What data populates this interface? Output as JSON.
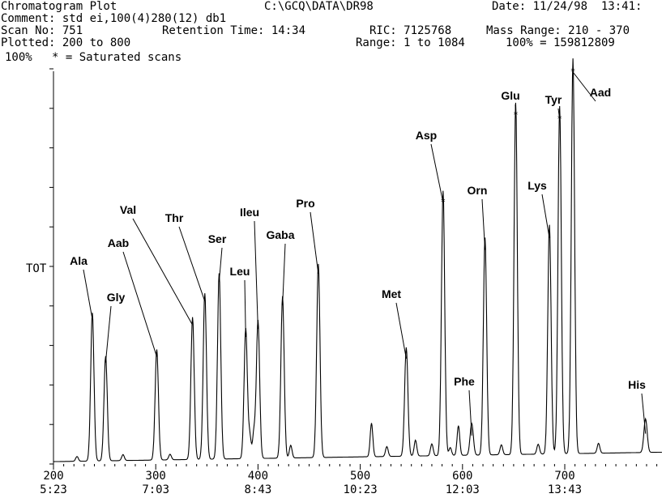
{
  "header": {
    "plot_title": "Chromatogram Plot",
    "file_path": "C:\\GCQ\\DATA\\DR98",
    "date": "Date: 11/24/98  13:41:",
    "comment": "Comment: std ei,100(4)280(12) db1",
    "scan_no": "Scan No: 751",
    "retention_time": "Retention Time: 14:34",
    "ric": "RIC: 7125768",
    "mass_range": "Mass Range: 210 - 370",
    "plotted": "Plotted: 200 to 800",
    "range": "Range: 1 to 1084",
    "full_scale": "100% = 159812809",
    "percent_label": "100%",
    "saturated_note": "* = Saturated scans",
    "y_label": "TOT"
  },
  "chart_data": {
    "type": "line",
    "title": "Chromatogram Plot",
    "ylabel": "TOT",
    "x_ticks": [
      {
        "scan": 200,
        "time": "5:23"
      },
      {
        "scan": 300,
        "time": "7:03"
      },
      {
        "scan": 400,
        "time": "8:43"
      },
      {
        "scan": 500,
        "time": "10:23"
      },
      {
        "scan": 600,
        "time": "12:03"
      },
      {
        "scan": 700,
        "time": "13:43"
      }
    ],
    "xlim": [
      200,
      800
    ],
    "ylim": [
      0,
      100
    ],
    "baseline": 0.6,
    "peaks": [
      {
        "label": "Ala",
        "x": 238,
        "y": 37.5
      },
      {
        "label": "Gly",
        "x": 251,
        "y": 26.5
      },
      {
        "label": "Aab",
        "x": 301,
        "y": 28.0
      },
      {
        "label": "Val",
        "x": 336,
        "y": 36.0
      },
      {
        "label": "Thr",
        "x": 348,
        "y": 42.0
      },
      {
        "label": "Ser",
        "x": 362,
        "y": 47.0
      },
      {
        "label": "Leu",
        "x": 388,
        "y": 33.0
      },
      {
        "label": "Ileu",
        "x": 400,
        "y": 35.0
      },
      {
        "label": "Gaba",
        "x": 424,
        "y": 41.0
      },
      {
        "label": "Pro",
        "x": 459,
        "y": 49.0
      },
      {
        "label": "Met",
        "x": 545,
        "y": 27.5
      },
      {
        "label": "Asp",
        "x": 581,
        "y": 67.0
      },
      {
        "label": "Phe",
        "x": 609,
        "y": 8.0
      },
      {
        "label": "Orn",
        "x": 622,
        "y": 55.0
      },
      {
        "label": "Glu",
        "x": 652,
        "y": 89.0
      },
      {
        "label": "Lys",
        "x": 685,
        "y": 58.0
      },
      {
        "label": "Tyr",
        "x": 695,
        "y": 88.0
      },
      {
        "label": "Aad",
        "x": 708,
        "y": 100.0
      },
      {
        "label": "His",
        "x": 779,
        "y": 8.5
      }
    ],
    "minor_peaks": [
      {
        "x": 223,
        "y": 1.2
      },
      {
        "x": 268,
        "y": 1.5
      },
      {
        "x": 314,
        "y": 1.4
      },
      {
        "x": 392,
        "y": 5.5
      },
      {
        "x": 396,
        "y": 6.5
      },
      {
        "x": 432,
        "y": 3.2
      },
      {
        "x": 511,
        "y": 8.5
      },
      {
        "x": 526,
        "y": 2.5
      },
      {
        "x": 554,
        "y": 4.0
      },
      {
        "x": 570,
        "y": 3.0
      },
      {
        "x": 588,
        "y": 2.0
      },
      {
        "x": 596,
        "y": 7.5
      },
      {
        "x": 638,
        "y": 2.5
      },
      {
        "x": 674,
        "y": 2.5
      },
      {
        "x": 733,
        "y": 2.5
      }
    ],
    "saturated_peaks": [
      "Asp",
      "Glu",
      "Tyr",
      "Aad"
    ]
  }
}
